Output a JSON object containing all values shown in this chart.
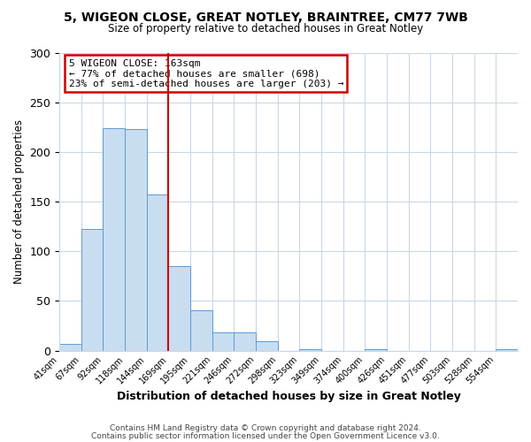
{
  "title": "5, WIGEON CLOSE, GREAT NOTLEY, BRAINTREE, CM77 7WB",
  "subtitle": "Size of property relative to detached houses in Great Notley",
  "xlabel": "Distribution of detached houses by size in Great Notley",
  "ylabel": "Number of detached properties",
  "bar_labels": [
    "41sqm",
    "67sqm",
    "92sqm",
    "118sqm",
    "144sqm",
    "169sqm",
    "195sqm",
    "221sqm",
    "246sqm",
    "272sqm",
    "298sqm",
    "323sqm",
    "349sqm",
    "374sqm",
    "400sqm",
    "426sqm",
    "451sqm",
    "477sqm",
    "503sqm",
    "528sqm",
    "554sqm"
  ],
  "bar_heights": [
    7,
    123,
    224,
    223,
    157,
    85,
    41,
    18,
    18,
    9,
    0,
    1,
    0,
    0,
    1,
    0,
    0,
    0,
    0,
    0,
    1
  ],
  "bar_color": "#c9ddf0",
  "bar_edge_color": "#5b9bd5",
  "vline_color": "#cc0000",
  "annotation_title": "5 WIGEON CLOSE: 163sqm",
  "annotation_line1": "← 77% of detached houses are smaller (698)",
  "annotation_line2": "23% of semi-detached houses are larger (203) →",
  "annotation_box_edge": "#cc0000",
  "ylim": [
    0,
    300
  ],
  "yticks": [
    0,
    50,
    100,
    150,
    200,
    250,
    300
  ],
  "footer_line1": "Contains HM Land Registry data © Crown copyright and database right 2024.",
  "footer_line2": "Contains public sector information licensed under the Open Government Licence v3.0.",
  "background_color": "#ffffff",
  "grid_color": "#c8d8e8"
}
